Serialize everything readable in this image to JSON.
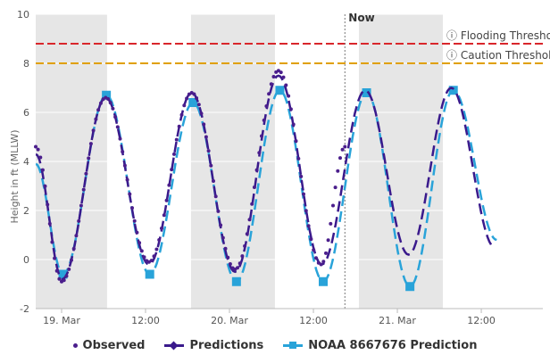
{
  "chart_data": {
    "type": "line",
    "title": "",
    "ylabel": "Height in ft (MLLW)",
    "xlabel": "",
    "ylim": [
      -2,
      10
    ],
    "yticks": [
      -2,
      0,
      2,
      4,
      6,
      8,
      10
    ],
    "x_unit": "hours since 19 Mar 00:00",
    "xlim": [
      -3.7,
      68.8
    ],
    "xticks": [
      {
        "x": 0,
        "label": "19. Mar"
      },
      {
        "x": 12,
        "label": "12:00"
      },
      {
        "x": 24,
        "label": "20. Mar"
      },
      {
        "x": 36,
        "label": "12:00"
      },
      {
        "x": 48,
        "label": "21. Mar"
      },
      {
        "x": 60,
        "label": "12:00"
      }
    ],
    "night_bands": [
      [
        -3.7,
        6.5
      ],
      [
        18.5,
        30.5
      ],
      [
        42.5,
        54.5
      ]
    ],
    "now_line": {
      "x": 40.5,
      "label": "Now"
    },
    "thresholds": [
      {
        "label": "ⓘ Flooding Threshold",
        "value": 8.8,
        "color": "#d9262b"
      },
      {
        "label": "ⓘ Caution Threshold",
        "value": 8.0,
        "color": "#e0a000"
      }
    ],
    "series": [
      {
        "name": "Observed",
        "style": "dots",
        "color": "#4b1e8c",
        "points": [
          [
            -3.7,
            4.6
          ],
          [
            0.0,
            -0.9
          ],
          [
            6.3,
            6.6
          ],
          [
            12.5,
            -0.1
          ],
          [
            18.6,
            6.8
          ],
          [
            24.8,
            -0.4
          ],
          [
            31.0,
            7.7
          ],
          [
            37.1,
            -0.2
          ],
          [
            40.5,
            4.6
          ]
        ]
      },
      {
        "name": "Predictions",
        "style": "dashed",
        "color": "#3a1a8c",
        "points": [
          [
            -3.7,
            4.3
          ],
          [
            0.1,
            -0.8
          ],
          [
            6.3,
            6.6
          ],
          [
            12.5,
            -0.2
          ],
          [
            18.6,
            6.8
          ],
          [
            24.8,
            -0.5
          ],
          [
            31.0,
            7.5
          ],
          [
            37.2,
            -0.2
          ],
          [
            43.4,
            6.9
          ],
          [
            49.6,
            0.2
          ],
          [
            55.7,
            7.0
          ],
          [
            61.9,
            0.5
          ]
        ]
      },
      {
        "name": "NOAA 8667676 Prediction",
        "style": "dashed-squares",
        "color": "#29a3d9",
        "points": [
          [
            -3.7,
            3.9
          ],
          [
            0.2,
            -0.6
          ],
          [
            6.4,
            6.7
          ],
          [
            12.6,
            -0.6
          ],
          [
            18.8,
            6.4
          ],
          [
            25.0,
            -0.9
          ],
          [
            31.2,
            6.9
          ],
          [
            37.4,
            -0.9
          ],
          [
            43.6,
            6.8
          ],
          [
            49.8,
            -1.1
          ],
          [
            56.0,
            6.9
          ],
          [
            62.2,
            0.8
          ]
        ]
      }
    ]
  }
}
